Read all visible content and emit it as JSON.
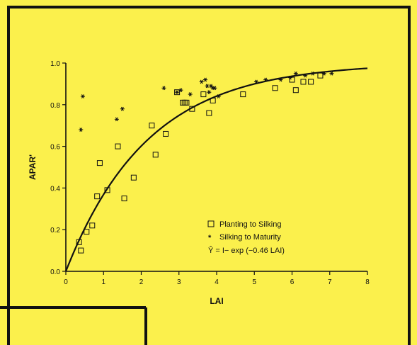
{
  "chart_data": {
    "type": "scatter",
    "title": "",
    "xlabel": "LAI",
    "ylabel": "APAR'",
    "xlim": [
      0,
      8
    ],
    "ylim": [
      0,
      1.0
    ],
    "x_ticks": [
      "0",
      "1",
      "2",
      "3",
      "4",
      "5",
      "6",
      "7",
      "8"
    ],
    "y_ticks": [
      "0.0",
      "0.2",
      "0.4",
      "0.6",
      "0.8",
      "1.0"
    ],
    "grid": false,
    "legend_position": "lower-right",
    "series": [
      {
        "name": "Planting to Silking",
        "marker": "square",
        "x": [
          0.35,
          0.4,
          0.55,
          0.7,
          0.83,
          0.9,
          1.1,
          1.38,
          1.55,
          1.8,
          2.28,
          2.38,
          2.65,
          2.95,
          3.1,
          3.15,
          3.2,
          3.35,
          3.65,
          3.8,
          3.9,
          4.7,
          5.55,
          6.0,
          6.1,
          6.3,
          6.5,
          6.75
        ],
        "y": [
          0.14,
          0.1,
          0.19,
          0.22,
          0.36,
          0.52,
          0.39,
          0.6,
          0.35,
          0.45,
          0.7,
          0.56,
          0.66,
          0.86,
          0.81,
          0.81,
          0.81,
          0.78,
          0.85,
          0.76,
          0.82,
          0.85,
          0.88,
          0.92,
          0.87,
          0.91,
          0.91,
          0.94
        ]
      },
      {
        "name": "Silking to Maturity",
        "marker": "asterisk",
        "x": [
          0.4,
          0.45,
          1.35,
          1.5,
          2.6,
          2.95,
          3.05,
          3.3,
          3.6,
          3.7,
          3.75,
          3.8,
          3.85,
          3.9,
          3.95,
          4.05,
          5.05,
          5.3,
          5.7,
          5.95,
          6.1,
          6.35,
          6.55,
          6.85,
          7.05
        ],
        "y": [
          0.68,
          0.84,
          0.73,
          0.78,
          0.88,
          0.86,
          0.87,
          0.85,
          0.91,
          0.92,
          0.89,
          0.86,
          0.89,
          0.88,
          0.88,
          0.84,
          0.91,
          0.92,
          0.92,
          0.93,
          0.95,
          0.94,
          0.95,
          0.95,
          0.95
        ]
      }
    ],
    "fit": {
      "label": "Ŷ = I− exp (−0.46 LAI)",
      "coefficient": -0.46
    }
  }
}
